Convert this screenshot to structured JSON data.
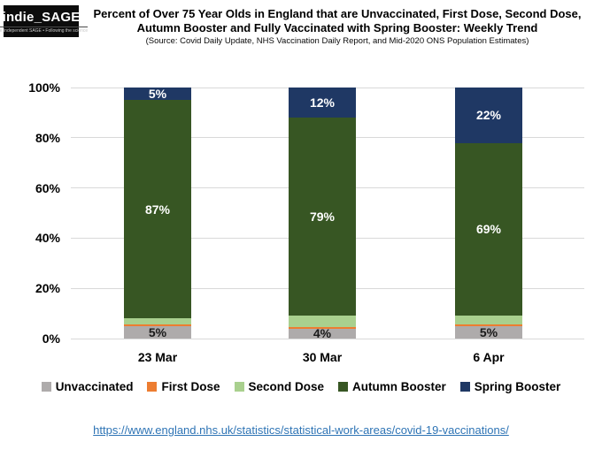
{
  "logo": {
    "text": "indie_SAGE",
    "tagline": "The Independent SAGE • Following the science"
  },
  "chart_data": {
    "type": "bar",
    "stacked": true,
    "title_line1": "Percent of Over 75 Year Olds in England that are Unvaccinated, First Dose, Second Dose,",
    "title_line2": "Autumn Booster and Fully Vaccinated with Spring Booster: Weekly Trend",
    "subtitle": "(Source: Covid Daily Update, NHS Vaccination Daily Report, and Mid-2020 ONS Population Estimates)",
    "categories": [
      "23 Mar",
      "30 Mar",
      "6 Apr"
    ],
    "series": [
      {
        "name": "Unvaccinated",
        "color": "#aeabab",
        "label_color": "#1a1a1a",
        "values": [
          5,
          4,
          5
        ],
        "labels": [
          "5%",
          "4%",
          "5%"
        ]
      },
      {
        "name": "First Dose",
        "color": "#ed7d31",
        "label_color": "#ffffff",
        "values": [
          0.5,
          0.5,
          0.5
        ],
        "labels": [
          "",
          "",
          ""
        ]
      },
      {
        "name": "Second Dose",
        "color": "#a9d08e",
        "label_color": "#1a1a1a",
        "values": [
          2.5,
          4.5,
          3.5
        ],
        "labels": [
          "",
          "",
          ""
        ]
      },
      {
        "name": "Autumn Booster",
        "color": "#375623",
        "label_color": "#ffffff",
        "values": [
          87,
          79,
          69
        ],
        "labels": [
          "87%",
          "79%",
          "69%"
        ]
      },
      {
        "name": "Spring Booster",
        "color": "#1f3864",
        "label_color": "#ffffff",
        "values": [
          5,
          12,
          22
        ],
        "labels": [
          "5%",
          "12%",
          "22%"
        ]
      }
    ],
    "y_ticks": [
      "0%",
      "20%",
      "40%",
      "60%",
      "80%",
      "100%"
    ],
    "ylim": [
      0,
      100
    ],
    "xlabel": "",
    "ylabel": "",
    "grid": true,
    "legend_position": "bottom"
  },
  "footer": {
    "link_text": "https://www.england.nhs.uk/statistics/statistical-work-areas/covid-19-vaccinations/",
    "link_url": "https://www.england.nhs.uk/statistics/statistical-work-areas/covid-19-vaccinations/"
  }
}
